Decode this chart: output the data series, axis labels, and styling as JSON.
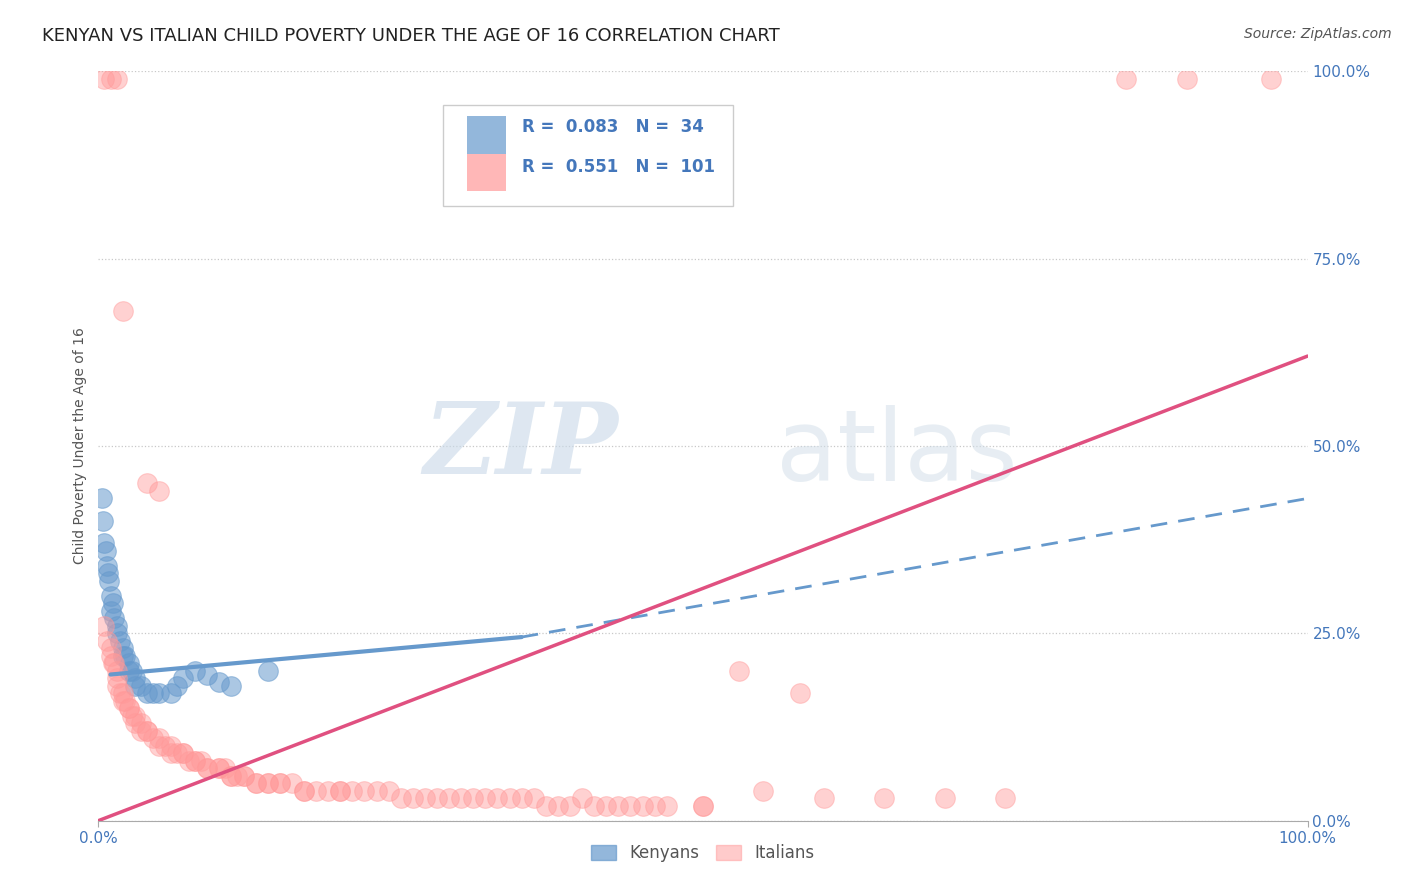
{
  "title": "KENYAN VS ITALIAN CHILD POVERTY UNDER THE AGE OF 16 CORRELATION CHART",
  "source": "Source: ZipAtlas.com",
  "ylabel": "Child Poverty Under the Age of 16",
  "kenyan_R": 0.083,
  "kenyan_N": 34,
  "italian_R": 0.551,
  "italian_N": 101,
  "kenyan_color": "#6699CC",
  "italian_color": "#FF9999",
  "italian_line_color": "#E05080",
  "kenyan_scatter": [
    [
      0.003,
      0.43
    ],
    [
      0.004,
      0.4
    ],
    [
      0.005,
      0.37
    ],
    [
      0.006,
      0.36
    ],
    [
      0.007,
      0.34
    ],
    [
      0.008,
      0.33
    ],
    [
      0.009,
      0.32
    ],
    [
      0.01,
      0.3
    ],
    [
      0.01,
      0.28
    ],
    [
      0.012,
      0.29
    ],
    [
      0.013,
      0.27
    ],
    [
      0.015,
      0.26
    ],
    [
      0.015,
      0.25
    ],
    [
      0.018,
      0.24
    ],
    [
      0.02,
      0.23
    ],
    [
      0.02,
      0.22
    ],
    [
      0.022,
      0.22
    ],
    [
      0.025,
      0.21
    ],
    [
      0.025,
      0.2
    ],
    [
      0.028,
      0.2
    ],
    [
      0.03,
      0.19
    ],
    [
      0.03,
      0.18
    ],
    [
      0.035,
      0.18
    ],
    [
      0.04,
      0.17
    ],
    [
      0.045,
      0.17
    ],
    [
      0.05,
      0.17
    ],
    [
      0.06,
      0.17
    ],
    [
      0.065,
      0.18
    ],
    [
      0.07,
      0.19
    ],
    [
      0.08,
      0.2
    ],
    [
      0.09,
      0.195
    ],
    [
      0.1,
      0.185
    ],
    [
      0.11,
      0.18
    ],
    [
      0.14,
      0.2
    ]
  ],
  "italian_scatter": [
    [
      0.005,
      0.99
    ],
    [
      0.01,
      0.99
    ],
    [
      0.015,
      0.99
    ],
    [
      0.02,
      0.68
    ],
    [
      0.04,
      0.45
    ],
    [
      0.05,
      0.44
    ],
    [
      0.005,
      0.26
    ],
    [
      0.007,
      0.24
    ],
    [
      0.01,
      0.23
    ],
    [
      0.01,
      0.22
    ],
    [
      0.012,
      0.21
    ],
    [
      0.013,
      0.21
    ],
    [
      0.015,
      0.2
    ],
    [
      0.015,
      0.19
    ],
    [
      0.015,
      0.18
    ],
    [
      0.018,
      0.17
    ],
    [
      0.02,
      0.17
    ],
    [
      0.02,
      0.16
    ],
    [
      0.022,
      0.16
    ],
    [
      0.025,
      0.15
    ],
    [
      0.025,
      0.15
    ],
    [
      0.028,
      0.14
    ],
    [
      0.03,
      0.14
    ],
    [
      0.03,
      0.13
    ],
    [
      0.035,
      0.13
    ],
    [
      0.035,
      0.12
    ],
    [
      0.04,
      0.12
    ],
    [
      0.04,
      0.12
    ],
    [
      0.045,
      0.11
    ],
    [
      0.05,
      0.11
    ],
    [
      0.05,
      0.1
    ],
    [
      0.055,
      0.1
    ],
    [
      0.06,
      0.1
    ],
    [
      0.06,
      0.09
    ],
    [
      0.065,
      0.09
    ],
    [
      0.07,
      0.09
    ],
    [
      0.07,
      0.09
    ],
    [
      0.075,
      0.08
    ],
    [
      0.08,
      0.08
    ],
    [
      0.08,
      0.08
    ],
    [
      0.085,
      0.08
    ],
    [
      0.09,
      0.07
    ],
    [
      0.09,
      0.07
    ],
    [
      0.1,
      0.07
    ],
    [
      0.1,
      0.07
    ],
    [
      0.105,
      0.07
    ],
    [
      0.11,
      0.06
    ],
    [
      0.11,
      0.06
    ],
    [
      0.115,
      0.06
    ],
    [
      0.12,
      0.06
    ],
    [
      0.12,
      0.06
    ],
    [
      0.13,
      0.05
    ],
    [
      0.13,
      0.05
    ],
    [
      0.14,
      0.05
    ],
    [
      0.14,
      0.05
    ],
    [
      0.15,
      0.05
    ],
    [
      0.15,
      0.05
    ],
    [
      0.16,
      0.05
    ],
    [
      0.17,
      0.04
    ],
    [
      0.17,
      0.04
    ],
    [
      0.18,
      0.04
    ],
    [
      0.19,
      0.04
    ],
    [
      0.2,
      0.04
    ],
    [
      0.2,
      0.04
    ],
    [
      0.21,
      0.04
    ],
    [
      0.22,
      0.04
    ],
    [
      0.23,
      0.04
    ],
    [
      0.24,
      0.04
    ],
    [
      0.25,
      0.03
    ],
    [
      0.26,
      0.03
    ],
    [
      0.27,
      0.03
    ],
    [
      0.28,
      0.03
    ],
    [
      0.29,
      0.03
    ],
    [
      0.3,
      0.03
    ],
    [
      0.31,
      0.03
    ],
    [
      0.32,
      0.03
    ],
    [
      0.33,
      0.03
    ],
    [
      0.34,
      0.03
    ],
    [
      0.35,
      0.03
    ],
    [
      0.36,
      0.03
    ],
    [
      0.37,
      0.02
    ],
    [
      0.38,
      0.02
    ],
    [
      0.39,
      0.02
    ],
    [
      0.4,
      0.03
    ],
    [
      0.41,
      0.02
    ],
    [
      0.42,
      0.02
    ],
    [
      0.43,
      0.02
    ],
    [
      0.44,
      0.02
    ],
    [
      0.45,
      0.02
    ],
    [
      0.46,
      0.02
    ],
    [
      0.47,
      0.02
    ],
    [
      0.5,
      0.02
    ],
    [
      0.5,
      0.02
    ],
    [
      0.53,
      0.2
    ],
    [
      0.55,
      0.04
    ],
    [
      0.58,
      0.17
    ],
    [
      0.6,
      0.03
    ],
    [
      0.65,
      0.03
    ],
    [
      0.7,
      0.03
    ],
    [
      0.75,
      0.03
    ],
    [
      0.85,
      0.99
    ],
    [
      0.9,
      0.99
    ],
    [
      0.97,
      0.99
    ]
  ],
  "kenyan_line_solid": [
    [
      0.01,
      0.195
    ],
    [
      0.35,
      0.245
    ]
  ],
  "kenyan_line_dashed": [
    [
      0.35,
      0.245
    ],
    [
      1.0,
      0.43
    ]
  ],
  "italian_line_solid": [
    [
      0.0,
      0.0
    ],
    [
      1.0,
      0.62
    ]
  ],
  "xlim": [
    0.0,
    1.0
  ],
  "ylim": [
    0.0,
    1.0
  ],
  "ytick_values": [
    0.0,
    0.25,
    0.5,
    0.75,
    1.0
  ],
  "ytick_labels": [
    "0.0%",
    "25.0%",
    "50.0%",
    "75.0%",
    "100.0%"
  ],
  "xtick_values": [
    0.0,
    1.0
  ],
  "xtick_labels": [
    "0.0%",
    "100.0%"
  ],
  "background_color": "#FFFFFF",
  "watermark_zip": "ZIP",
  "watermark_atlas": "atlas",
  "title_fontsize": 13,
  "label_fontsize": 10,
  "tick_fontsize": 11,
  "source_fontsize": 10
}
